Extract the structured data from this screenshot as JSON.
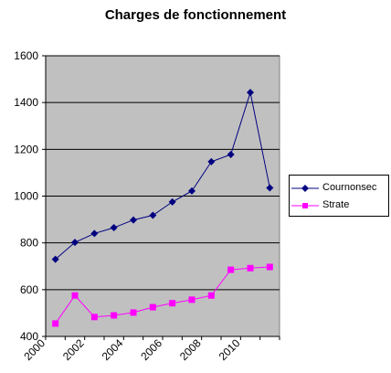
{
  "chart_data": {
    "type": "line",
    "title": "Charges de fonctionnement",
    "xlabel": "",
    "ylabel": "",
    "x": [
      2000.5,
      2001.5,
      2002.5,
      2003.5,
      2004.5,
      2005.5,
      2006.5,
      2007.5,
      2008.5,
      2009.5,
      2010.5,
      2011.5
    ],
    "xlim": [
      2000,
      2012
    ],
    "ylim": [
      400,
      1600
    ],
    "y_ticks": [
      400,
      600,
      800,
      1000,
      1200,
      1400,
      1600
    ],
    "x_ticks": [
      2000,
      2002,
      2004,
      2006,
      2008,
      2010
    ],
    "y_tick_labels": [
      "400",
      "600",
      "800",
      "1000",
      "1200",
      "1400",
      "1600"
    ],
    "x_tick_labels": [
      "2000",
      "2002",
      "2004",
      "2006",
      "2008",
      "2010"
    ],
    "grid": "horizontal",
    "plot_background": "#c0c0c0",
    "legend_position": "right",
    "series": [
      {
        "name": "Cournonsec",
        "color": "#000080",
        "marker": "diamond",
        "values": [
          730,
          802,
          840,
          865,
          898,
          918,
          975,
          1022,
          1147,
          1178,
          1443,
          1035
        ]
      },
      {
        "name": "Strate",
        "color": "#ff00ff",
        "marker": "square",
        "values": [
          455,
          575,
          483,
          490,
          502,
          525,
          542,
          557,
          575,
          685,
          692,
          697
        ]
      }
    ]
  }
}
